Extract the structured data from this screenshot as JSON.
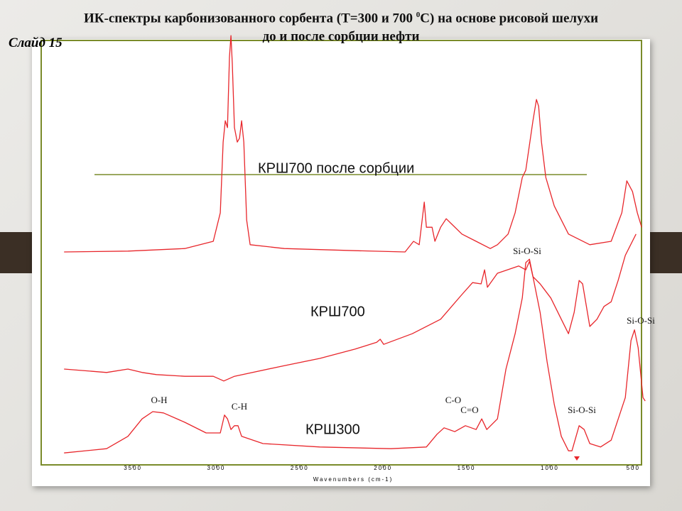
{
  "slide_label": "Слайд 15",
  "title": {
    "line1": "ИК-спектры карбонизованного сорбента (Т=300 и 700 ",
    "sup": "0",
    "line1_end": "С) на основе рисовой шелухи",
    "line2": "до и после сорбции нефти"
  },
  "chart_data": {
    "type": "line",
    "xlabel": "Wavenumbers (cm-1)",
    "xlim": [
      4050,
      450
    ],
    "ylim": [
      0,
      105
    ],
    "xticks": [
      3500,
      3000,
      2500,
      2000,
      1500,
      1000,
      500
    ],
    "series": [
      {
        "name": "КРШ700 после сорбции",
        "color": "#e8262b",
        "x": [
          3913,
          3530,
          3189,
          3018,
          2976,
          2959,
          2946,
          2933,
          2921,
          2912,
          2904,
          2891,
          2874,
          2861,
          2848,
          2835,
          2818,
          2797,
          2592,
          2166,
          1868,
          1817,
          1783,
          1753,
          1740,
          1706,
          1689,
          1655,
          1621,
          1527,
          1442,
          1357,
          1314,
          1250,
          1208,
          1165,
          1144,
          1101,
          1080,
          1067,
          1050,
          1024,
          973,
          888,
          760,
          632,
          568,
          538,
          504,
          475,
          449
        ],
        "values": [
          50,
          50.2,
          50.8,
          52.5,
          59.2,
          75.8,
          80.8,
          79.2,
          95.8,
          100.8,
          94.2,
          79.2,
          75.8,
          76.7,
          80.8,
          75.8,
          57.5,
          51.7,
          50.8,
          50.3,
          50,
          52.5,
          51.7,
          61.7,
          55.8,
          55.8,
          52.5,
          55.8,
          57.8,
          54.2,
          52.5,
          50.8,
          51.7,
          54.2,
          59.2,
          67.5,
          69.2,
          80.8,
          85.8,
          84.2,
          75.8,
          67.5,
          60.8,
          54.2,
          51.7,
          52.5,
          59.2,
          66.7,
          64.2,
          59.2,
          55.8
        ]
      },
      {
        "name": "КРШ700",
        "color": "#e8262b",
        "x": [
          3913,
          3658,
          3530,
          3445,
          3359,
          3189,
          3018,
          2955,
          2891,
          2592,
          2379,
          2166,
          2038,
          2017,
          1996,
          1825,
          1655,
          1527,
          1463,
          1412,
          1391,
          1374,
          1314,
          1186,
          1144,
          1122,
          1101,
          1058,
          994,
          931,
          888,
          854,
          824,
          803,
          760,
          717,
          675,
          632,
          590,
          547,
          483
        ],
        "values": [
          22.5,
          21.7,
          22.5,
          21.7,
          21.2,
          20.8,
          20.8,
          19.7,
          20.8,
          23.3,
          25,
          27.2,
          28.8,
          29.5,
          28.3,
          30.8,
          34.2,
          40,
          42.8,
          42.5,
          45.8,
          41.7,
          45,
          46.7,
          45.8,
          47.8,
          44.2,
          42.5,
          39.2,
          34.2,
          30.8,
          35.8,
          43.3,
          42.5,
          32.5,
          34.2,
          37.2,
          38.3,
          43.3,
          49.2,
          54.2
        ]
      },
      {
        "name": "КРШ300",
        "color": "#e8262b",
        "x": [
          3913,
          3658,
          3530,
          3445,
          3381,
          3317,
          3189,
          3061,
          2976,
          2951,
          2933,
          2912,
          2891,
          2870,
          2848,
          2720,
          2379,
          1953,
          1740,
          1676,
          1634,
          1570,
          1506,
          1442,
          1408,
          1378,
          1314,
          1263,
          1208,
          1165,
          1144,
          1122,
          1101,
          1058,
          1016,
          973,
          931,
          888,
          867,
          824,
          794,
          760,
          696,
          632,
          547,
          513,
          492,
          470,
          441,
          428
        ],
        "values": [
          2.8,
          3.8,
          6.7,
          10.8,
          12.5,
          12.2,
          10,
          7.5,
          7.5,
          11.7,
          10.8,
          8.3,
          9.2,
          9.2,
          6.7,
          5,
          4.2,
          3.8,
          4.2,
          7.2,
          8.7,
          7.8,
          9.2,
          8.3,
          10.8,
          8.3,
          10.8,
          22.5,
          30.8,
          39.2,
          47.5,
          48.3,
          44.2,
          35.8,
          24.2,
          14.2,
          6.7,
          3.3,
          3.3,
          9.2,
          8.3,
          5,
          4.2,
          5.8,
          15.8,
          29.2,
          31.7,
          27.5,
          15.8,
          15
        ]
      }
    ],
    "annotations": [
      "O-H",
      "C-H",
      "C-O",
      "C=O",
      "Si-O-Si",
      "Si-O-Si",
      "Si-O-Si"
    ]
  }
}
